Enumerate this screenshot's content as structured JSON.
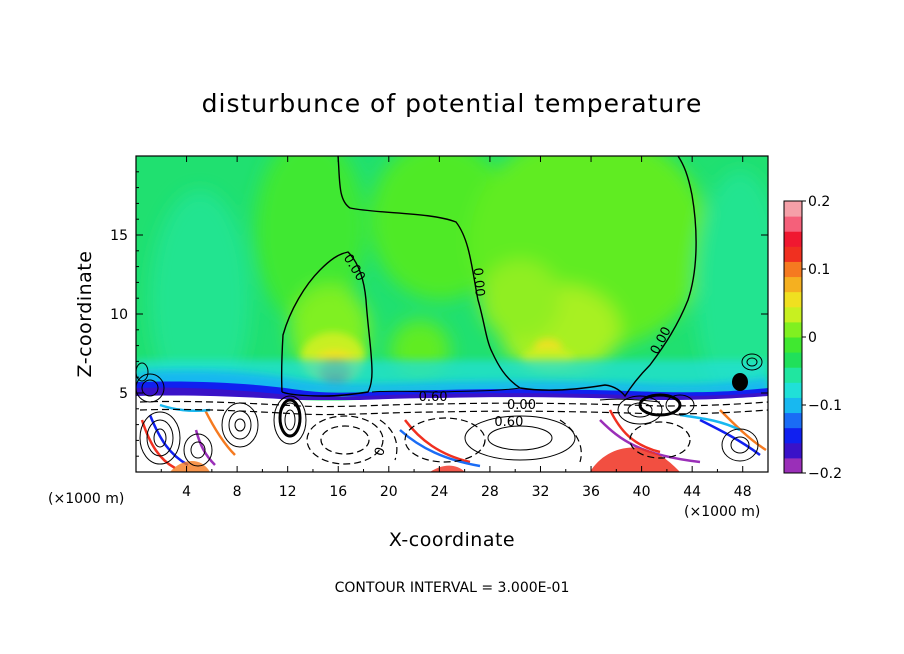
{
  "chart_data": {
    "type": "heatmap",
    "title": "disturbunce of potential temperature",
    "xlabel": "X-coordinate",
    "ylabel": "Z-coordinate",
    "x_unit_left": "(×1000 m)",
    "x_unit_right": "(×1000 m)",
    "xlim": [
      0,
      50
    ],
    "ylim": [
      0,
      20
    ],
    "x_ticks": [
      "4",
      "8",
      "12",
      "16",
      "20",
      "24",
      "28",
      "32",
      "36",
      "40",
      "44",
      "48"
    ],
    "x_tick_values": [
      4,
      8,
      12,
      16,
      20,
      24,
      28,
      32,
      36,
      40,
      44,
      48
    ],
    "y_ticks": [
      "5",
      "10",
      "15"
    ],
    "y_tick_values": [
      5,
      10,
      15
    ],
    "colorbar": {
      "min": -0.2,
      "max": 0.2,
      "tick_labels": [
        "0.2",
        "0.1",
        "0",
        "−0.1",
        "−0.2"
      ],
      "tick_values": [
        0.2,
        0.1,
        0,
        -0.1,
        -0.2
      ],
      "colors": [
        "#9a2fb8",
        "#3a12c8",
        "#1020f0",
        "#1a6cf5",
        "#18b8f0",
        "#20e0d8",
        "#20e6a0",
        "#20e05a",
        "#40e830",
        "#80f020",
        "#c8f020",
        "#f0e020",
        "#f5b020",
        "#f57a20",
        "#f03020",
        "#f01830",
        "#f5607a",
        "#f5a0a8"
      ]
    },
    "contour_labels": [
      {
        "text": "0.00",
        "x": 17.0,
        "y": 12.8,
        "angle": 58
      },
      {
        "text": "0.00",
        "x": 26.8,
        "y": 12.0,
        "angle": 85
      },
      {
        "text": "0.00",
        "x": 41.8,
        "y": 8.2,
        "angle": -62
      },
      {
        "text": "0.60",
        "x": 23.5,
        "y": 4.5,
        "angle": 0
      },
      {
        "text": "0.00",
        "x": 30.5,
        "y": 4.0,
        "angle": 0
      },
      {
        "text": "0.60",
        "x": 29.5,
        "y": 2.9,
        "angle": 0
      },
      {
        "text": "0",
        "x": 19.6,
        "y": 1.2,
        "angle": -70
      }
    ],
    "contour_interval_text": "CONTOUR INTERVAL = 3.000E-01",
    "grid": false,
    "legend_placement": "right"
  }
}
